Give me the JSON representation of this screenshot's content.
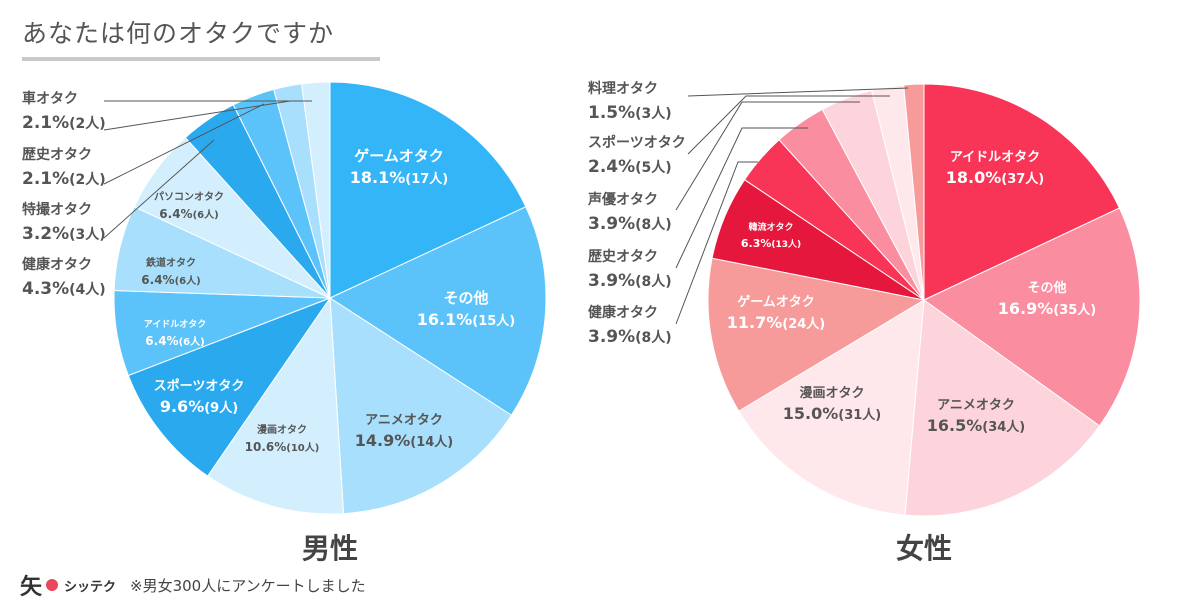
{
  "title": "あなたは何のオタクですか",
  "footer": {
    "logo_kanji": "矢",
    "logo_text": "シッテク",
    "note": "※男女300人にアンケートしました"
  },
  "chart_data": [
    {
      "type": "pie",
      "title": "男性",
      "slices": [
        {
          "label": "ゲームオタク",
          "value": 18.1,
          "value_text": "18.1%",
          "count_text": "(17人)",
          "color": "#33b5f8",
          "text_color": "#ffffff"
        },
        {
          "label": "その他",
          "value": 16.1,
          "value_text": "16.1%",
          "count_text": "(15人)",
          "color": "#5cc3fa",
          "text_color": "#ffffff"
        },
        {
          "label": "アニメオタク",
          "value": 14.9,
          "value_text": "14.9%",
          "count_text": "(14人)",
          "color": "#a7dffc",
          "text_color": "#555555"
        },
        {
          "label": "漫画オタク",
          "value": 10.6,
          "value_text": "10.6%",
          "count_text": "(10人)",
          "color": "#d3effd",
          "text_color": "#555555"
        },
        {
          "label": "スポーツオタク",
          "value": 9.6,
          "value_text": "9.6%",
          "count_text": "(9人)",
          "color": "#2aa9ef",
          "text_color": "#ffffff"
        },
        {
          "label": "アイドルオタク",
          "value": 6.4,
          "value_text": "6.4%",
          "count_text": "(6人)",
          "color": "#5cc3fa",
          "text_color": "#ffffff"
        },
        {
          "label": "鉄道オタク",
          "value": 6.4,
          "value_text": "6.4%",
          "count_text": "(6人)",
          "color": "#a7dffc",
          "text_color": "#555555"
        },
        {
          "label": "パソコンオタク",
          "value": 6.4,
          "value_text": "6.4%",
          "count_text": "(6人)",
          "color": "#d3effd",
          "text_color": "#555555"
        },
        {
          "label": "健康オタク",
          "value": 4.3,
          "value_text": "4.3%",
          "count_text": "(4人)",
          "color": "#2aa9ef",
          "text_color": "#555555"
        },
        {
          "label": "特撮オタク",
          "value": 3.2,
          "value_text": "3.2%",
          "count_text": "(3人)",
          "color": "#5cc3fa",
          "text_color": "#555555"
        },
        {
          "label": "歴史オタク",
          "value": 2.1,
          "value_text": "2.1%",
          "count_text": "(2人)",
          "color": "#a7dffc",
          "text_color": "#555555"
        },
        {
          "label": "車オタク",
          "value": 2.1,
          "value_text": "2.1%",
          "count_text": "(2人)",
          "color": "#d3effd",
          "text_color": "#555555"
        }
      ]
    },
    {
      "type": "pie",
      "title": "女性",
      "slices": [
        {
          "label": "アイドルオタク",
          "value": 18.0,
          "value_text": "18.0%",
          "count_text": "(37人)",
          "color": "#f83556",
          "text_color": "#ffffff"
        },
        {
          "label": "その他",
          "value": 16.9,
          "value_text": "16.9%",
          "count_text": "(35人)",
          "color": "#fa8ea0",
          "text_color": "#ffffff"
        },
        {
          "label": "アニメオタク",
          "value": 16.5,
          "value_text": "16.5%",
          "count_text": "(34人)",
          "color": "#fdd4db",
          "text_color": "#555555"
        },
        {
          "label": "漫画オタク",
          "value": 15.0,
          "value_text": "15.0%",
          "count_text": "(31人)",
          "color": "#ffe8ec",
          "text_color": "#555555"
        },
        {
          "label": "ゲームオタク",
          "value": 11.7,
          "value_text": "11.7%",
          "count_text": "(24人)",
          "color": "#f79a9a",
          "text_color": "#ffffff"
        },
        {
          "label": "韓流オタク",
          "value": 6.3,
          "value_text": "6.3%",
          "count_text": "(13人)",
          "color": "#e5173d",
          "text_color": "#ffffff"
        },
        {
          "label": "健康オタク",
          "value": 3.9,
          "value_text": "3.9%",
          "count_text": "(8人)",
          "color": "#f83556",
          "text_color": "#555555"
        },
        {
          "label": "歴史オタク",
          "value": 3.9,
          "value_text": "3.9%",
          "count_text": "(8人)",
          "color": "#fa8ea0",
          "text_color": "#555555"
        },
        {
          "label": "声優オタク",
          "value": 3.9,
          "value_text": "3.9%",
          "count_text": "(8人)",
          "color": "#fdd4db",
          "text_color": "#555555"
        },
        {
          "label": "スポーツオタク",
          "value": 2.4,
          "value_text": "2.4%",
          "count_text": "(5人)",
          "color": "#ffe8ec",
          "text_color": "#555555"
        },
        {
          "label": "料理オタク",
          "value": 1.5,
          "value_text": "1.5%",
          "count_text": "(3人)",
          "color": "#f79a9a",
          "text_color": "#555555"
        }
      ]
    }
  ]
}
